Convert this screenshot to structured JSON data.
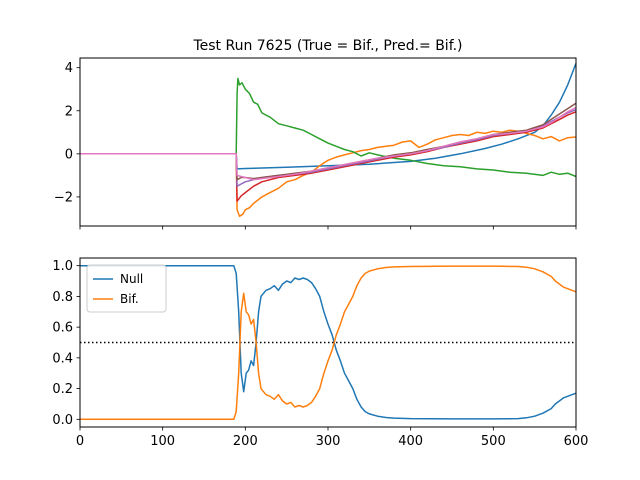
{
  "chart_data": [
    {
      "type": "line",
      "title": "Test Run 7625 (True = Bif., Pred.= Bif.)",
      "xlim": [
        0,
        600
      ],
      "ylim": [
        -3.35,
        4.45
      ],
      "xticks": [
        0,
        100,
        200,
        300,
        400,
        500,
        600
      ],
      "yticks": [
        -2,
        0,
        2,
        4
      ],
      "ytick_labels": [
        "−2",
        "0",
        "2",
        "4"
      ],
      "show_xtick_labels": false,
      "grid": false,
      "series": [
        {
          "color": "#1f77b4",
          "x": [
            0,
            189,
            190,
            200,
            250,
            300,
            350,
            400,
            430,
            460,
            490,
            510,
            530,
            550,
            560,
            570,
            580,
            590,
            600
          ],
          "y": [
            0,
            0,
            -0.7,
            -0.68,
            -0.62,
            -0.55,
            -0.48,
            -0.35,
            -0.2,
            0,
            0.25,
            0.45,
            0.7,
            1.0,
            1.3,
            1.8,
            2.4,
            3.2,
            4.2
          ]
        },
        {
          "color": "#ff7f0e",
          "x": [
            0,
            189,
            190,
            193,
            197,
            200,
            205,
            210,
            220,
            230,
            240,
            250,
            260,
            270,
            280,
            290,
            300,
            310,
            320,
            330,
            340,
            350,
            360,
            370,
            380,
            390,
            400,
            410,
            420,
            430,
            440,
            450,
            460,
            470,
            480,
            490,
            500,
            510,
            520,
            530,
            540,
            550,
            560,
            570,
            580,
            590,
            600
          ],
          "y": [
            0,
            0,
            -2.6,
            -2.9,
            -2.8,
            -2.6,
            -2.5,
            -2.3,
            -2.0,
            -1.8,
            -1.6,
            -1.3,
            -1.2,
            -1.0,
            -0.85,
            -0.55,
            -0.3,
            -0.15,
            -0.05,
            0.05,
            0.15,
            0.2,
            0.3,
            0.35,
            0.4,
            0.55,
            0.6,
            0.3,
            0.45,
            0.65,
            0.75,
            0.85,
            0.9,
            0.85,
            1.0,
            0.95,
            1.05,
            1.0,
            1.1,
            1.05,
            0.95,
            0.85,
            0.7,
            0.8,
            0.6,
            0.75,
            0.78
          ]
        },
        {
          "color": "#2ca02c",
          "x": [
            0,
            189,
            190,
            191,
            193,
            196,
            200,
            205,
            210,
            215,
            220,
            225,
            230,
            240,
            250,
            260,
            270,
            280,
            290,
            300,
            310,
            320,
            330,
            340,
            350,
            360,
            380,
            400,
            420,
            440,
            460,
            480,
            500,
            520,
            540,
            560,
            570,
            580,
            590,
            600
          ],
          "y": [
            0,
            0,
            2.8,
            3.5,
            3.2,
            3.3,
            3.0,
            2.8,
            2.4,
            2.3,
            1.9,
            1.8,
            1.7,
            1.4,
            1.3,
            1.2,
            1.1,
            0.9,
            0.7,
            0.5,
            0.35,
            0.2,
            0.1,
            -0.1,
            0.05,
            -0.05,
            -0.2,
            -0.3,
            -0.45,
            -0.55,
            -0.6,
            -0.7,
            -0.75,
            -0.85,
            -0.9,
            -1.0,
            -0.85,
            -0.95,
            -0.9,
            -1.05
          ]
        },
        {
          "color": "#d62728",
          "x": [
            0,
            189,
            190,
            195,
            200,
            210,
            220,
            240,
            260,
            280,
            300,
            320,
            340,
            360,
            380,
            400,
            420,
            440,
            460,
            480,
            500,
            520,
            540,
            560,
            570,
            580,
            590,
            600
          ],
          "y": [
            0,
            0,
            -2.2,
            -1.95,
            -1.8,
            -1.5,
            -1.3,
            -1.1,
            -1.0,
            -0.9,
            -0.75,
            -0.6,
            -0.45,
            -0.3,
            -0.15,
            -0.05,
            0.1,
            0.3,
            0.45,
            0.6,
            0.8,
            0.9,
            1.0,
            1.2,
            1.4,
            1.6,
            1.8,
            1.95
          ]
        },
        {
          "color": "#9467bd",
          "x": [
            0,
            189,
            190,
            195,
            200,
            210,
            220,
            240,
            260,
            280,
            300,
            320,
            340,
            360,
            380,
            400,
            420,
            440,
            460,
            480,
            500,
            520,
            540,
            560,
            570,
            580,
            590,
            600
          ],
          "y": [
            0,
            0,
            -1.5,
            -1.4,
            -1.3,
            -1.2,
            -1.1,
            -1.0,
            -0.95,
            -0.85,
            -0.7,
            -0.55,
            -0.4,
            -0.25,
            -0.1,
            0.0,
            0.15,
            0.3,
            0.5,
            0.65,
            0.85,
            0.95,
            1.05,
            1.3,
            1.5,
            1.7,
            1.9,
            2.05
          ]
        },
        {
          "color": "#8c564b",
          "x": [
            0,
            189,
            190,
            195,
            200,
            210,
            220,
            240,
            260,
            280,
            300,
            320,
            340,
            360,
            380,
            400,
            420,
            440,
            460,
            480,
            500,
            520,
            540,
            560,
            570,
            580,
            590,
            600
          ],
          "y": [
            0,
            0,
            -1.2,
            -1.1,
            -1.1,
            -1.15,
            -1.1,
            -1.0,
            -0.9,
            -0.8,
            -0.65,
            -0.5,
            -0.35,
            -0.2,
            -0.05,
            0.05,
            0.2,
            0.35,
            0.55,
            0.7,
            0.9,
            1.0,
            1.1,
            1.35,
            1.6,
            1.85,
            2.1,
            2.35
          ]
        },
        {
          "color": "#e377c2",
          "x": [
            0,
            189,
            190,
            195,
            200,
            210,
            220,
            240,
            260,
            280,
            300,
            320,
            340,
            360,
            380,
            400,
            420,
            440,
            460,
            480,
            500,
            520,
            540,
            560,
            570,
            580,
            590,
            600
          ],
          "y": [
            0,
            0,
            -1.0,
            -1.05,
            -1.1,
            -1.2,
            -1.15,
            -1.05,
            -0.95,
            -0.8,
            -0.65,
            -0.5,
            -0.35,
            -0.2,
            -0.1,
            0.0,
            0.15,
            0.35,
            0.55,
            0.7,
            0.9,
            0.95,
            1.05,
            1.25,
            1.45,
            1.7,
            1.95,
            2.15
          ]
        }
      ]
    },
    {
      "type": "line",
      "xlim": [
        0,
        600
      ],
      "ylim": [
        -0.05,
        1.05
      ],
      "xticks": [
        0,
        100,
        200,
        300,
        400,
        500,
        600
      ],
      "yticks": [
        0.0,
        0.2,
        0.4,
        0.6,
        0.8,
        1.0
      ],
      "ytick_labels": [
        "0.0",
        "0.2",
        "0.4",
        "0.6",
        "0.8",
        "1.0"
      ],
      "xtick_labels": [
        "0",
        "100",
        "200",
        "300",
        "400",
        "500",
        "600"
      ],
      "hline": {
        "y": 0.5,
        "style": "dotted",
        "color": "#000000"
      },
      "legend": {
        "placement": "upper-left"
      },
      "grid": false,
      "series": [
        {
          "name": "Null",
          "color": "#1f77b4",
          "x": [
            0,
            186,
            189,
            192,
            195,
            198,
            201,
            204,
            207,
            210,
            213,
            216,
            219,
            222,
            225,
            230,
            235,
            240,
            245,
            250,
            255,
            260,
            265,
            270,
            275,
            280,
            285,
            290,
            295,
            300,
            305,
            310,
            315,
            320,
            325,
            330,
            335,
            340,
            345,
            350,
            360,
            370,
            380,
            400,
            450,
            500,
            530,
            540,
            550,
            560,
            570,
            575,
            580,
            585,
            590,
            595,
            600
          ],
          "y": [
            1.0,
            1.0,
            0.95,
            0.7,
            0.3,
            0.18,
            0.3,
            0.32,
            0.38,
            0.35,
            0.5,
            0.7,
            0.8,
            0.82,
            0.84,
            0.85,
            0.87,
            0.84,
            0.88,
            0.9,
            0.89,
            0.92,
            0.91,
            0.92,
            0.91,
            0.89,
            0.85,
            0.8,
            0.7,
            0.62,
            0.55,
            0.45,
            0.38,
            0.3,
            0.25,
            0.2,
            0.13,
            0.08,
            0.05,
            0.035,
            0.02,
            0.012,
            0.008,
            0.005,
            0.003,
            0.003,
            0.005,
            0.01,
            0.02,
            0.04,
            0.07,
            0.1,
            0.12,
            0.14,
            0.15,
            0.16,
            0.17
          ]
        },
        {
          "name": "Bif.",
          "color": "#ff7f0e",
          "x": [
            0,
            186,
            189,
            192,
            195,
            198,
            201,
            204,
            207,
            210,
            213,
            216,
            219,
            222,
            225,
            230,
            235,
            240,
            245,
            250,
            255,
            260,
            265,
            270,
            275,
            280,
            285,
            290,
            295,
            300,
            305,
            310,
            315,
            320,
            325,
            330,
            335,
            340,
            345,
            350,
            360,
            370,
            380,
            400,
            450,
            500,
            530,
            540,
            550,
            560,
            570,
            575,
            580,
            585,
            590,
            595,
            600
          ],
          "y": [
            0.0,
            0.0,
            0.05,
            0.3,
            0.7,
            0.82,
            0.7,
            0.68,
            0.62,
            0.65,
            0.5,
            0.3,
            0.2,
            0.18,
            0.16,
            0.15,
            0.13,
            0.16,
            0.12,
            0.1,
            0.11,
            0.08,
            0.09,
            0.08,
            0.09,
            0.11,
            0.15,
            0.2,
            0.3,
            0.38,
            0.45,
            0.55,
            0.62,
            0.7,
            0.75,
            0.8,
            0.87,
            0.92,
            0.95,
            0.965,
            0.98,
            0.988,
            0.992,
            0.995,
            0.997,
            0.997,
            0.995,
            0.99,
            0.98,
            0.96,
            0.93,
            0.9,
            0.88,
            0.86,
            0.85,
            0.84,
            0.83
          ]
        }
      ]
    }
  ]
}
